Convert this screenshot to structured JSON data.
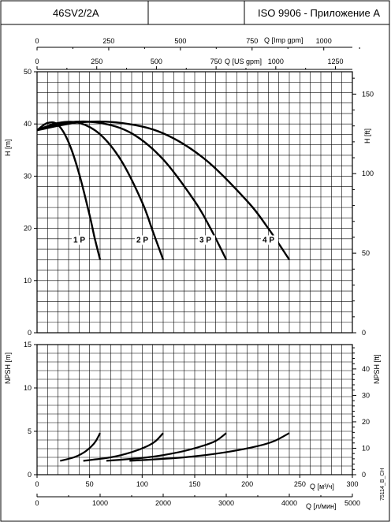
{
  "header": {
    "model": "46SV2/2A",
    "standard": "ISO 9906 - Приложение A"
  },
  "footer_code": "75114_B_CH",
  "axes": {
    "imp_gpm": {
      "label": "Q [Imp gpm]",
      "ticks": [
        "0",
        "250",
        "500",
        "750",
        "1000"
      ]
    },
    "us_gpm": {
      "label": "Q [US gpm]",
      "ticks": [
        "0",
        "250",
        "500",
        "750",
        "1000",
        "1250"
      ]
    },
    "head_m": {
      "label": "H [m]",
      "ticks": [
        "0",
        "10",
        "20",
        "30",
        "40",
        "50"
      ]
    },
    "head_ft": {
      "label": "H [ft]",
      "ticks": [
        "0",
        "50",
        "100",
        "150"
      ]
    },
    "npsh_m": {
      "label": "NPSH [m]",
      "ticks": [
        "0",
        "5",
        "10",
        "15"
      ]
    },
    "npsh_ft": {
      "label": "NPSH [ft]",
      "ticks": [
        "0",
        "10",
        "20",
        "30",
        "40"
      ]
    },
    "flow_m3h": {
      "label": "Q [м³/ч]",
      "ticks": [
        "0",
        "50",
        "100",
        "150",
        "200",
        "250",
        "300"
      ]
    },
    "flow_lmin": {
      "label": "Q [л/мин]",
      "ticks": [
        "0",
        "1000",
        "2000",
        "3000",
        "4000",
        "5000"
      ]
    }
  },
  "chart_data": [
    {
      "type": "line",
      "panel": "head",
      "xlabel": "Q [м³/ч]",
      "ylabel": "H [m]",
      "xlim": [
        0,
        300
      ],
      "ylim": [
        0,
        50
      ],
      "grid": true,
      "series": [
        {
          "name": "1 P",
          "x": [
            0,
            10,
            20,
            30,
            40,
            50,
            55,
            60
          ],
          "y": [
            38.8,
            40.2,
            39.8,
            36.5,
            30.5,
            22.5,
            18.0,
            14.0
          ]
        },
        {
          "name": "2 P",
          "x": [
            0,
            20,
            40,
            60,
            80,
            100,
            110,
            120
          ],
          "y": [
            38.8,
            40.2,
            40.2,
            38.0,
            33.0,
            25.0,
            19.5,
            14.0
          ]
        },
        {
          "name": "3 P",
          "x": [
            0,
            30,
            60,
            90,
            120,
            150,
            165,
            180
          ],
          "y": [
            38.8,
            40.3,
            40.2,
            38.2,
            33.2,
            25.2,
            20.0,
            14.0
          ]
        },
        {
          "name": "4 P",
          "x": [
            0,
            40,
            80,
            120,
            160,
            200,
            220,
            240
          ],
          "y": [
            38.8,
            40.3,
            40.2,
            38.2,
            33.2,
            25.2,
            20.0,
            14.0
          ]
        }
      ]
    },
    {
      "type": "line",
      "panel": "npsh",
      "xlabel": "Q [м³/ч]",
      "ylabel": "NPSH [m]",
      "xlim": [
        0,
        300
      ],
      "ylim": [
        0,
        15
      ],
      "grid": true,
      "series": [
        {
          "x": [
            22,
            35,
            45,
            52,
            56,
            60
          ],
          "y": [
            1.6,
            2.0,
            2.6,
            3.3,
            3.9,
            4.8
          ]
        },
        {
          "x": [
            44,
            70,
            90,
            105,
            113,
            120
          ],
          "y": [
            1.6,
            2.0,
            2.6,
            3.3,
            3.9,
            4.8
          ]
        },
        {
          "x": [
            66,
            105,
            135,
            157,
            170,
            180
          ],
          "y": [
            1.6,
            2.0,
            2.6,
            3.3,
            3.9,
            4.8
          ]
        },
        {
          "x": [
            88,
            140,
            180,
            210,
            226,
            240
          ],
          "y": [
            1.6,
            2.0,
            2.6,
            3.3,
            3.9,
            4.8
          ]
        }
      ]
    }
  ]
}
